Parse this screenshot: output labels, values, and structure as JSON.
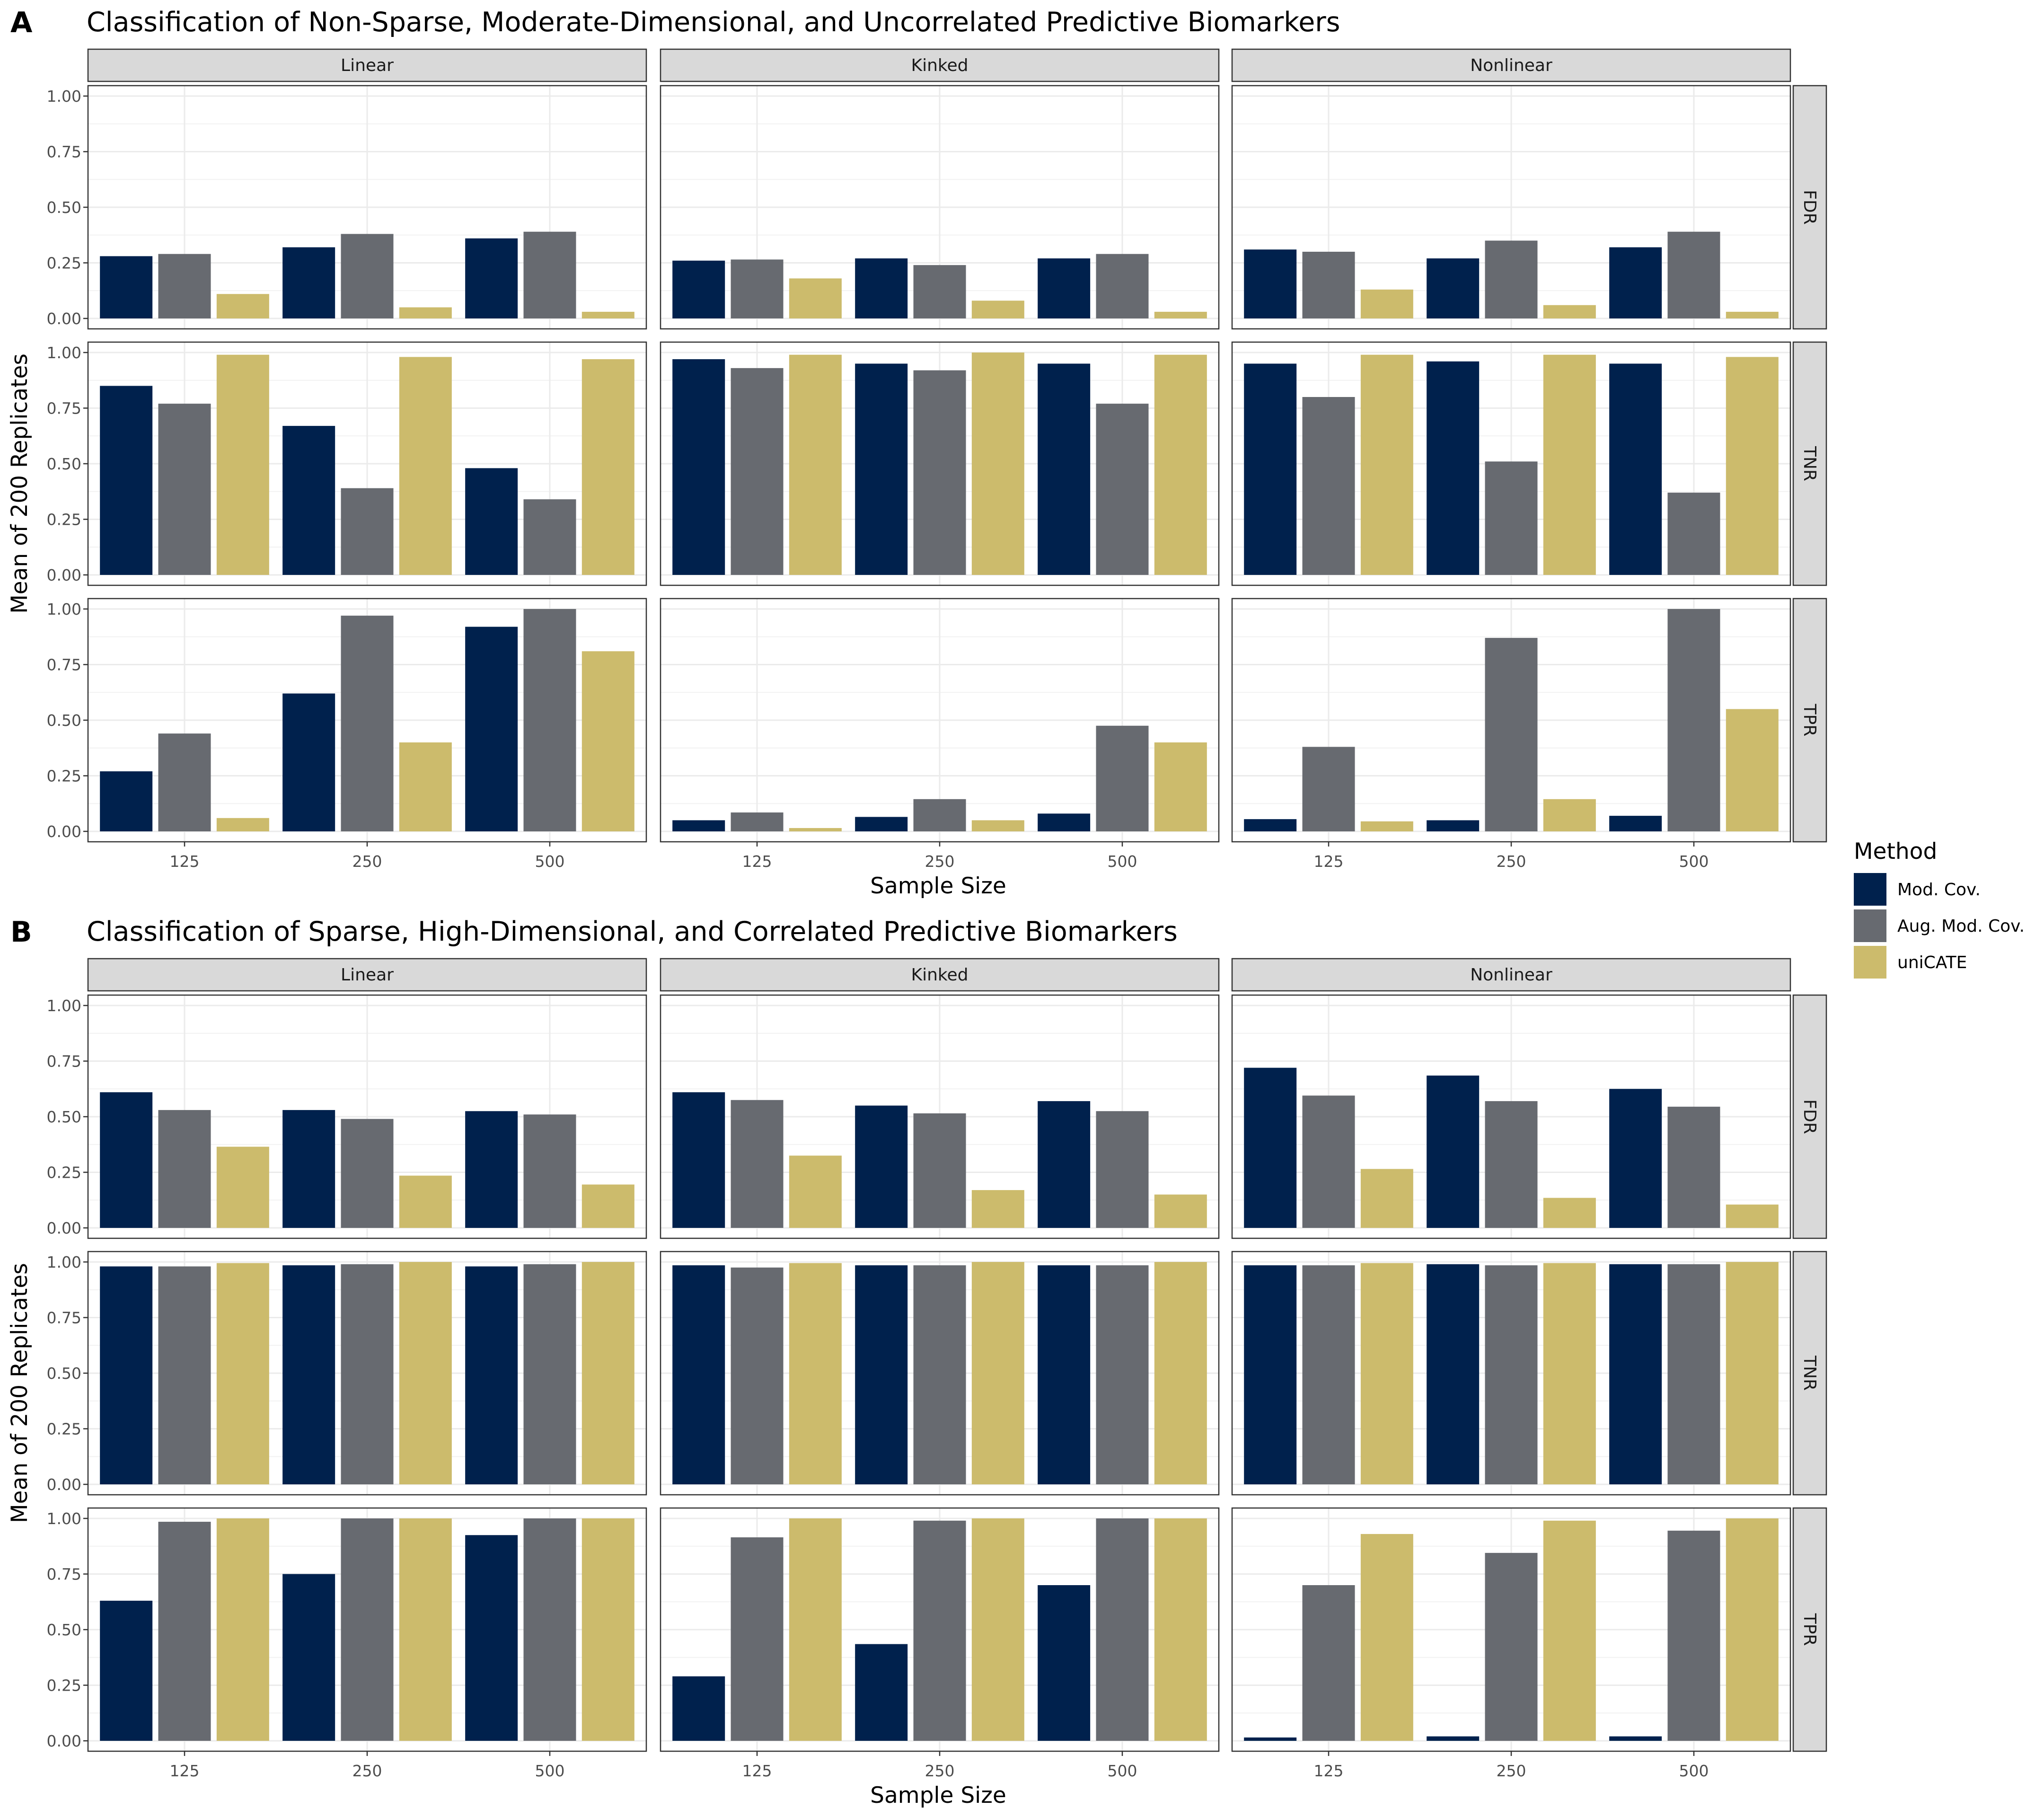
{
  "figure": {
    "legend": {
      "title": "Method",
      "placement": "right",
      "items": [
        {
          "label": "Mod. Cov.",
          "color": "#00214D"
        },
        {
          "label": "Aug. Mod. Cov.",
          "color": "#676A70"
        },
        {
          "label": "uniCATE",
          "color": "#CCBB6C"
        }
      ]
    }
  },
  "chart_data": [
    {
      "type": "bar",
      "tag": "A",
      "title": "Classification of Non-Sparse, Moderate-Dimensional, and Uncorrelated Predictive Biomarkers",
      "xlabel": "Sample Size",
      "ylabel": "Mean of 200 Replicates",
      "ylim": [
        0,
        1
      ],
      "yticks": [
        "0.00",
        "0.25",
        "0.50",
        "0.75",
        "1.00"
      ],
      "grid": true,
      "columns": [
        "Linear",
        "Kinked",
        "Nonlinear"
      ],
      "rows": [
        "FDR",
        "TNR",
        "TPR"
      ],
      "categories": [
        "125",
        "250",
        "500"
      ],
      "series_names": [
        "Mod. Cov.",
        "Aug. Mod. Cov.",
        "uniCATE"
      ],
      "panels": [
        [
          [
            [
              0.28,
              0.29,
              0.11
            ],
            [
              0.32,
              0.38,
              0.05
            ],
            [
              0.36,
              0.39,
              0.03
            ]
          ],
          [
            [
              0.26,
              0.265,
              0.18
            ],
            [
              0.27,
              0.24,
              0.08
            ],
            [
              0.27,
              0.29,
              0.03
            ]
          ],
          [
            [
              0.31,
              0.3,
              0.13
            ],
            [
              0.27,
              0.35,
              0.06
            ],
            [
              0.32,
              0.39,
              0.03
            ]
          ]
        ],
        [
          [
            [
              0.85,
              0.77,
              0.99
            ],
            [
              0.67,
              0.39,
              0.98
            ],
            [
              0.48,
              0.34,
              0.97
            ]
          ],
          [
            [
              0.97,
              0.93,
              0.99
            ],
            [
              0.95,
              0.92,
              1.0
            ],
            [
              0.95,
              0.77,
              0.99
            ]
          ],
          [
            [
              0.95,
              0.8,
              0.99
            ],
            [
              0.96,
              0.51,
              0.99
            ],
            [
              0.95,
              0.37,
              0.98
            ]
          ]
        ],
        [
          [
            [
              0.27,
              0.44,
              0.06
            ],
            [
              0.62,
              0.97,
              0.4
            ],
            [
              0.92,
              1.0,
              0.81
            ]
          ],
          [
            [
              0.05,
              0.085,
              0.015
            ],
            [
              0.065,
              0.145,
              0.05
            ],
            [
              0.08,
              0.475,
              0.4
            ]
          ],
          [
            [
              0.055,
              0.38,
              0.045
            ],
            [
              0.05,
              0.87,
              0.145
            ],
            [
              0.07,
              1.0,
              0.55
            ]
          ]
        ]
      ]
    },
    {
      "type": "bar",
      "tag": "B",
      "title": "Classification of Sparse, High-Dimensional, and Correlated Predictive Biomarkers",
      "xlabel": "Sample Size",
      "ylabel": "Mean of 200 Replicates",
      "ylim": [
        0,
        1
      ],
      "yticks": [
        "0.00",
        "0.25",
        "0.50",
        "0.75",
        "1.00"
      ],
      "grid": true,
      "columns": [
        "Linear",
        "Kinked",
        "Nonlinear"
      ],
      "rows": [
        "FDR",
        "TNR",
        "TPR"
      ],
      "categories": [
        "125",
        "250",
        "500"
      ],
      "series_names": [
        "Mod. Cov.",
        "Aug. Mod. Cov.",
        "uniCATE"
      ],
      "panels": [
        [
          [
            [
              0.61,
              0.53,
              0.365
            ],
            [
              0.53,
              0.49,
              0.235
            ],
            [
              0.525,
              0.51,
              0.195
            ]
          ],
          [
            [
              0.61,
              0.575,
              0.325
            ],
            [
              0.55,
              0.515,
              0.17
            ],
            [
              0.57,
              0.525,
              0.15
            ]
          ],
          [
            [
              0.72,
              0.595,
              0.265
            ],
            [
              0.685,
              0.57,
              0.135
            ],
            [
              0.625,
              0.545,
              0.105
            ]
          ]
        ],
        [
          [
            [
              0.98,
              0.98,
              0.995
            ],
            [
              0.985,
              0.99,
              1.0
            ],
            [
              0.98,
              0.99,
              1.0
            ]
          ],
          [
            [
              0.985,
              0.975,
              0.995
            ],
            [
              0.985,
              0.985,
              1.0
            ],
            [
              0.985,
              0.985,
              1.0
            ]
          ],
          [
            [
              0.985,
              0.985,
              0.995
            ],
            [
              0.99,
              0.985,
              0.995
            ],
            [
              0.99,
              0.99,
              1.0
            ]
          ]
        ],
        [
          [
            [
              0.63,
              0.985,
              1.0
            ],
            [
              0.75,
              1.0,
              1.0
            ],
            [
              0.925,
              1.0,
              1.0
            ]
          ],
          [
            [
              0.29,
              0.915,
              1.0
            ],
            [
              0.435,
              0.99,
              1.0
            ],
            [
              0.7,
              1.0,
              1.0
            ]
          ],
          [
            [
              0.015,
              0.7,
              0.93
            ],
            [
              0.02,
              0.845,
              0.99
            ],
            [
              0.02,
              0.945,
              1.0
            ]
          ]
        ]
      ]
    }
  ]
}
